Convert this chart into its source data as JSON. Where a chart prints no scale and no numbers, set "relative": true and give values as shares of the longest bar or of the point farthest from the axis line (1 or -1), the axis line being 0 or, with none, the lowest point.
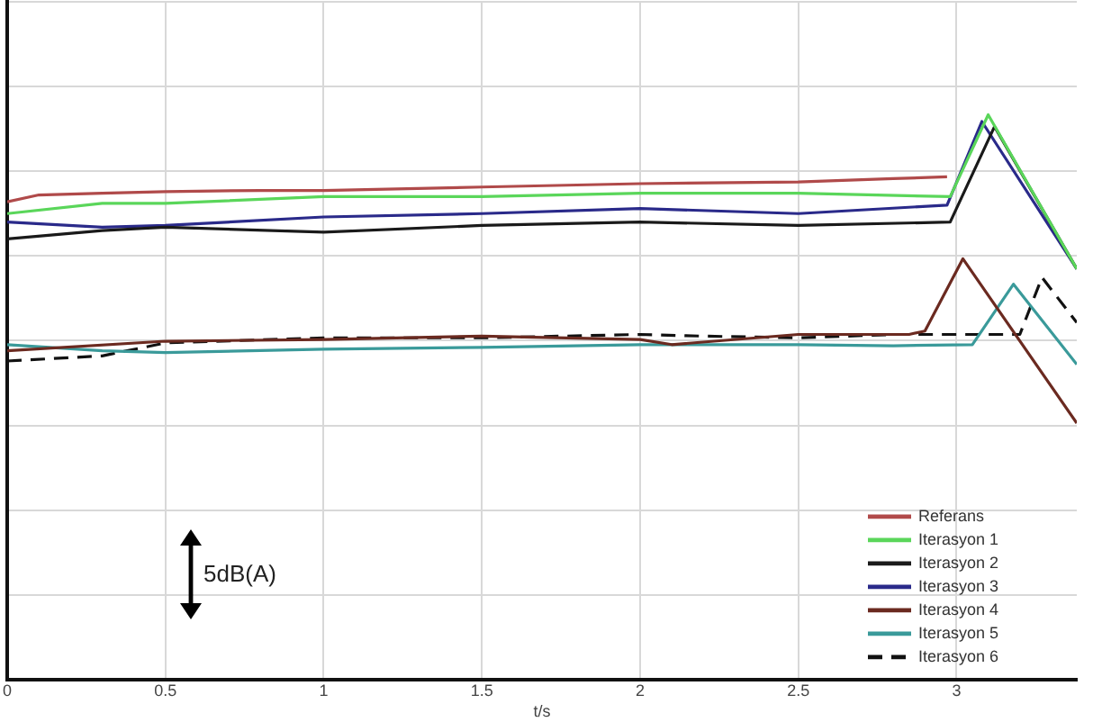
{
  "chart_data": {
    "type": "line",
    "relative": true,
    "xlabel": "t/s",
    "xlim": [
      0,
      3.38
    ],
    "xticks": [
      0,
      0.5,
      1,
      1.5,
      2,
      2.5,
      3
    ],
    "grid": true,
    "legend": "bottom right",
    "annotations": [
      "5dB(A)"
    ],
    "series": [
      {
        "name": "Referans",
        "color": "#b04a4a",
        "x": [
          0,
          0.1,
          0.3,
          0.5,
          0.8,
          1.0,
          1.5,
          2.0,
          2.5,
          2.8,
          2.97
        ],
        "values": [
          0.846,
          0.858,
          0.861,
          0.864,
          0.866,
          0.866,
          0.872,
          0.878,
          0.881,
          0.887,
          0.89
        ]
      },
      {
        "name": "Iterasyon 1",
        "color": "#5ad65a",
        "x": [
          0,
          0.3,
          0.5,
          1.0,
          1.5,
          2.0,
          2.5,
          2.98,
          3.1,
          3.38
        ],
        "values": [
          0.825,
          0.843,
          0.843,
          0.855,
          0.855,
          0.861,
          0.861,
          0.855,
          1.0,
          0.727
        ]
      },
      {
        "name": "Iterasyon 2",
        "color": "#1a1a1a",
        "x": [
          0,
          0.3,
          0.5,
          1.0,
          1.5,
          2.0,
          2.5,
          2.98,
          3.12,
          3.38
        ],
        "values": [
          0.78,
          0.795,
          0.801,
          0.792,
          0.804,
          0.81,
          0.804,
          0.81,
          0.979,
          0.727
        ]
      },
      {
        "name": "Iterasyon 3",
        "color": "#2a2a8a",
        "x": [
          0,
          0.3,
          0.5,
          1.0,
          1.5,
          2.0,
          2.5,
          2.97,
          3.08,
          3.38
        ],
        "values": [
          0.81,
          0.801,
          0.804,
          0.819,
          0.825,
          0.834,
          0.825,
          0.84,
          0.988,
          0.727
        ]
      },
      {
        "name": "Iterasyon 4",
        "color": "#6b2a20",
        "x": [
          0,
          0.5,
          1.0,
          1.5,
          2.0,
          2.1,
          2.5,
          2.85,
          2.9,
          3.02,
          3.38
        ],
        "values": [
          0.582,
          0.599,
          0.602,
          0.608,
          0.602,
          0.593,
          0.611,
          0.611,
          0.617,
          0.745,
          0.454
        ]
      },
      {
        "name": "Iterasyon 5",
        "color": "#3a9a9a",
        "x": [
          0,
          0.3,
          0.5,
          1.0,
          1.5,
          2.0,
          2.5,
          2.8,
          3.05,
          3.18,
          3.38
        ],
        "values": [
          0.593,
          0.582,
          0.579,
          0.585,
          0.588,
          0.593,
          0.593,
          0.591,
          0.593,
          0.7,
          0.558
        ]
      },
      {
        "name": "Iterasyon 6",
        "color": "#111111",
        "line_style": "dashed",
        "x": [
          0,
          0.3,
          0.5,
          1.0,
          1.5,
          2.0,
          2.2,
          2.5,
          2.8,
          3.0,
          3.2,
          3.27,
          3.38
        ],
        "values": [
          0.564,
          0.573,
          0.596,
          0.605,
          0.605,
          0.611,
          0.608,
          0.605,
          0.611,
          0.611,
          0.611,
          0.712,
          0.632
        ]
      }
    ]
  }
}
